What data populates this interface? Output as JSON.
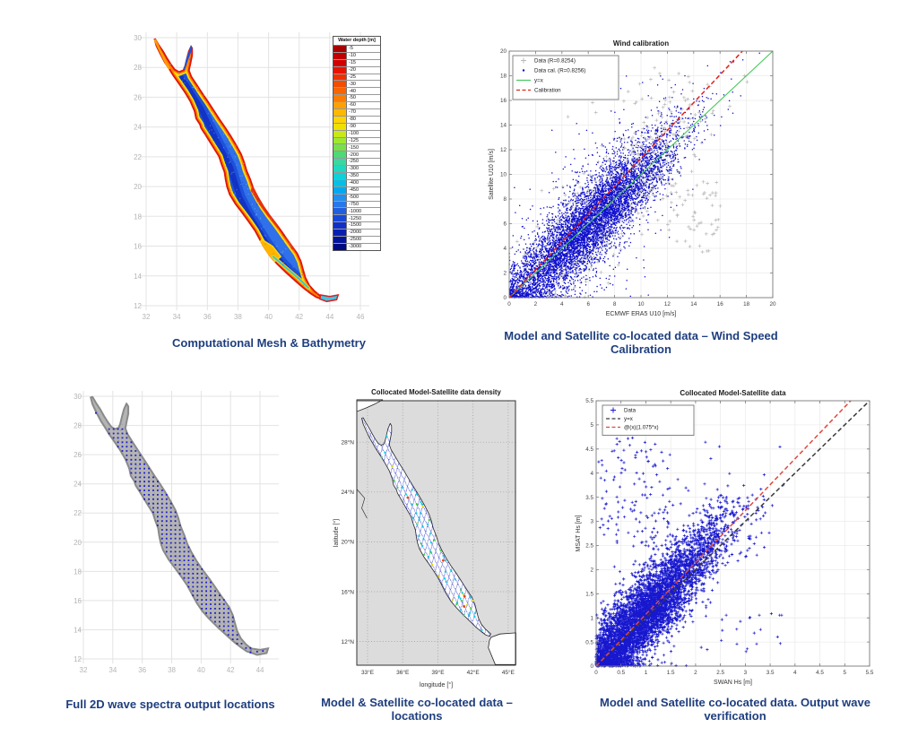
{
  "captions": {
    "bathymetry": "Computational Mesh & Bathymetry",
    "wind": "Model and Satellite co-located data – Wind Speed Calibration",
    "spectra": "Full 2D wave spectra output locations",
    "locations": "Model & Satellite co-located data – locations",
    "wave": "Model and Satellite co-located data. Output wave verification"
  },
  "chart_data": [
    {
      "id": "bathymetry",
      "type": "heatmap",
      "title": "",
      "region": "Red Sea computational mesh bathymetry",
      "x_ticks": [
        32,
        34,
        36,
        38,
        40,
        42,
        44,
        46
      ],
      "y_ticks": [
        12,
        14,
        16,
        18,
        20,
        22,
        24,
        26,
        28,
        30
      ],
      "colorbar": {
        "title": "Water depth [m]",
        "entries": [
          {
            "label": "-5",
            "color": "#AA0000"
          },
          {
            "label": "-10",
            "color": "#C00000"
          },
          {
            "label": "-15",
            "color": "#D40000"
          },
          {
            "label": "-20",
            "color": "#E81400"
          },
          {
            "label": "-25",
            "color": "#F03000"
          },
          {
            "label": "-30",
            "color": "#F44D00"
          },
          {
            "label": "-40",
            "color": "#F86400"
          },
          {
            "label": "-50",
            "color": "#FC7C00"
          },
          {
            "label": "-60",
            "color": "#FFA000"
          },
          {
            "label": "-70",
            "color": "#FFB800"
          },
          {
            "label": "-80",
            "color": "#FFD400"
          },
          {
            "label": "-90",
            "color": "#F0E000"
          },
          {
            "label": "-100",
            "color": "#C8E818"
          },
          {
            "label": "-125",
            "color": "#A0E830"
          },
          {
            "label": "-150",
            "color": "#78E048"
          },
          {
            "label": "-200",
            "color": "#50D878"
          },
          {
            "label": "-250",
            "color": "#38D8A0"
          },
          {
            "label": "-300",
            "color": "#20D8C0"
          },
          {
            "label": "-350",
            "color": "#10D0D8"
          },
          {
            "label": "-400",
            "color": "#00C0E8"
          },
          {
            "label": "-450",
            "color": "#00A8F0"
          },
          {
            "label": "-500",
            "color": "#2090F0"
          },
          {
            "label": "-750",
            "color": "#2878E8"
          },
          {
            "label": "-1000",
            "color": "#2060E0"
          },
          {
            "label": "-1250",
            "color": "#1848D8"
          },
          {
            "label": "-1500",
            "color": "#1030C8"
          },
          {
            "label": "-2000",
            "color": "#0820B0"
          },
          {
            "label": "-2500",
            "color": "#041498"
          },
          {
            "label": "-3000",
            "color": "#000A80"
          }
        ]
      }
    },
    {
      "id": "wind_calibration",
      "type": "scatter",
      "title": "Wind calibration",
      "xlabel": "ECMWF ERA5 U10 [m/s]",
      "ylabel": "Satellite U10 [m/s]",
      "xlim": [
        0,
        20
      ],
      "ylim": [
        0,
        20
      ],
      "x_ticks": [
        0,
        2,
        4,
        6,
        8,
        10,
        12,
        14,
        16,
        18,
        20
      ],
      "y_ticks": [
        0,
        2,
        4,
        6,
        8,
        10,
        12,
        14,
        16,
        18,
        20
      ],
      "legend_position": "top-left",
      "series": [
        {
          "name": "Data (R=0.8254)",
          "marker": "plus",
          "color": "#b9b9b9",
          "gen": {
            "n": 620,
            "seed": 11,
            "x_mean": 7.8,
            "x_sd": 3.3,
            "slope": 1.03,
            "noise_sd": 2.0,
            "wild_prob": 0.1,
            "wild_sd": 2.5,
            "extras": [
              {
                "n": 55,
                "seed": 31,
                "x": [
                  12,
                  16.2
                ],
                "y": [
                  3.5,
                  9.5
                ]
              },
              {
                "n": 22,
                "seed": 32,
                "x": [
                  4,
                  13
                ],
                "y": [
                  14.5,
                  19.3
                ]
              }
            ]
          }
        },
        {
          "name": "Data cal. (R=0.8256)",
          "marker": "dot",
          "color": "#1010cf",
          "gen": {
            "n": 7200,
            "seed": 7,
            "x_mean": 6.0,
            "x_sd": 3.3,
            "slope": 1.0,
            "noise_sd": 1.5,
            "wild_prob": 0.13,
            "wild_sd": 3.0
          }
        },
        {
          "name": "y=x",
          "marker": "line",
          "color": "#46c95c",
          "dash": null,
          "line": {
            "x1": 0,
            "y1": 0,
            "x2": 20,
            "y2": 20
          }
        },
        {
          "name": "Calibration",
          "marker": "line",
          "color": "#e32219",
          "dash": "5,3",
          "line": {
            "x1": 0,
            "y1": 0,
            "x2": 17.7,
            "y2": 20
          }
        }
      ]
    },
    {
      "id": "density_map",
      "type": "scatter-map",
      "title": "Collocated Model-Satellite data density",
      "xlabel": "longitude [°]",
      "ylabel": "latitude [°]",
      "x_ticks": [
        33,
        36,
        39,
        42,
        45
      ],
      "x_tick_labels": [
        "33°E",
        "36°E",
        "39°E",
        "42°E",
        "45°E"
      ],
      "y_ticks": [
        12,
        16,
        20,
        24,
        28
      ],
      "y_tick_labels": [
        "12°N",
        "16°N",
        "20°N",
        "24°N",
        "28°N"
      ],
      "xlim": [
        32.08,
        45.62
      ],
      "ylim": [
        10.1,
        31.32
      ]
    },
    {
      "id": "wave_verification",
      "type": "scatter",
      "title": "Collocated Model-Satellite data",
      "xlabel": "SWAN Hs [m]",
      "ylabel": "MSAT Hs [m]",
      "xlim": [
        0,
        5.5
      ],
      "ylim": [
        0,
        5.5
      ],
      "x_ticks": [
        0,
        0.5,
        1,
        1.5,
        2,
        2.5,
        3,
        3.5,
        4,
        4.5,
        5,
        5.5
      ],
      "y_ticks": [
        0,
        0.5,
        1,
        1.5,
        2,
        2.5,
        3,
        3.5,
        4,
        4.5,
        5,
        5.5
      ],
      "legend_position": "top-left",
      "series": [
        {
          "name": "Data",
          "marker": "plus",
          "color": "#1717cf",
          "gen": {
            "n": 5200,
            "seed": 21,
            "x_mean": 0.95,
            "x_sd": 0.8,
            "slope": 1.075,
            "noise_sd": 0.4,
            "wild_prob": 0.05,
            "wild_sd": 0.85,
            "extras": [
              {
                "n": 120,
                "seed": 5,
                "x": [
                  0.05,
                  1.5
                ],
                "y": [
                  2.55,
                  4.75
                ]
              },
              {
                "n": 22,
                "seed": 6,
                "x": [
                  2.2,
                  3.75
                ],
                "y": [
                  0.3,
                  1.1
                ]
              },
              {
                "n": 30,
                "seed": 8,
                "x": [
                  2.4,
                  3.6
                ],
                "y": [
                  2.2,
                  3.3
                ]
              }
            ]
          }
        },
        {
          "name": "y=x",
          "marker": "line",
          "color": "#3a3a3a",
          "dash": "5,3",
          "line": {
            "x1": 0,
            "y1": 0,
            "x2": 5.5,
            "y2": 5.5
          }
        },
        {
          "name": "@(x)(1.075*x)",
          "marker": "line",
          "color": "#e0483e",
          "dash": "5,3",
          "line": {
            "x1": 0,
            "y1": 0,
            "x2": 5.12,
            "y2": 5.5
          }
        }
      ]
    },
    {
      "id": "spectra_locations",
      "type": "map",
      "title": "",
      "x_ticks": [
        32,
        34,
        36,
        38,
        40,
        42,
        44
      ],
      "y_ticks": [
        12,
        14,
        16,
        18,
        20,
        22,
        24,
        26,
        28,
        30
      ],
      "marker": {
        "shape": "square",
        "color": "#1c1ccd",
        "grid_spacing_deg": 0.3
      }
    }
  ],
  "map_geometry": {
    "red_sea": [
      [
        32.5,
        29.92
      ],
      [
        32.62,
        29.45
      ],
      [
        32.88,
        28.9
      ],
      [
        33.18,
        28.32
      ],
      [
        33.45,
        27.9
      ],
      [
        33.72,
        27.45
      ],
      [
        34.1,
        26.9
      ],
      [
        34.5,
        26.3
      ],
      [
        34.85,
        25.7
      ],
      [
        35.12,
        25.05
      ],
      [
        35.22,
        24.55
      ],
      [
        35.48,
        24.15
      ],
      [
        35.55,
        23.9
      ],
      [
        35.9,
        23.35
      ],
      [
        36.35,
        22.6
      ],
      [
        36.72,
        22.0
      ],
      [
        36.88,
        21.5
      ],
      [
        37.08,
        20.95
      ],
      [
        37.15,
        20.45
      ],
      [
        37.25,
        19.95
      ],
      [
        37.42,
        19.45
      ],
      [
        37.8,
        18.8
      ],
      [
        38.25,
        18.2
      ],
      [
        38.68,
        17.6
      ],
      [
        39.08,
        17.0
      ],
      [
        39.4,
        16.4
      ],
      [
        39.7,
        15.85
      ],
      [
        40.1,
        15.25
      ],
      [
        40.55,
        14.75
      ],
      [
        41.1,
        14.2
      ],
      [
        41.7,
        13.65
      ],
      [
        42.25,
        13.15
      ],
      [
        42.7,
        12.8
      ],
      [
        43.1,
        12.52
      ],
      [
        43.42,
        12.42
      ],
      [
        43.52,
        12.62
      ],
      [
        43.05,
        13.0
      ],
      [
        42.7,
        13.4
      ],
      [
        42.45,
        13.9
      ],
      [
        42.3,
        14.45
      ],
      [
        42.15,
        15.0
      ],
      [
        41.9,
        15.55
      ],
      [
        41.55,
        16.05
      ],
      [
        41.2,
        16.55
      ],
      [
        40.9,
        17.0
      ],
      [
        40.55,
        17.5
      ],
      [
        40.1,
        18.1
      ],
      [
        39.7,
        18.7
      ],
      [
        39.35,
        19.3
      ],
      [
        39.05,
        19.9
      ],
      [
        38.85,
        20.5
      ],
      [
        38.6,
        21.1
      ],
      [
        38.45,
        21.65
      ],
      [
        38.25,
        22.2
      ],
      [
        37.9,
        22.85
      ],
      [
        37.55,
        23.45
      ],
      [
        37.2,
        24.0
      ],
      [
        36.8,
        24.6
      ],
      [
        36.45,
        25.15
      ],
      [
        36.1,
        25.7
      ],
      [
        35.7,
        26.3
      ],
      [
        35.35,
        26.85
      ],
      [
        35.0,
        27.4
      ],
      [
        34.85,
        27.8
      ],
      [
        34.95,
        28.3
      ],
      [
        35.05,
        28.8
      ],
      [
        35.05,
        29.3
      ],
      [
        34.93,
        29.5
      ],
      [
        34.75,
        29.1
      ],
      [
        34.62,
        28.6
      ],
      [
        34.5,
        28.1
      ],
      [
        34.4,
        27.85
      ],
      [
        34.15,
        27.75
      ],
      [
        33.9,
        27.9
      ],
      [
        33.65,
        28.25
      ],
      [
        33.4,
        28.65
      ],
      [
        33.15,
        29.1
      ],
      [
        32.85,
        29.55
      ],
      [
        32.62,
        29.95
      ]
    ],
    "trench": [
      [
        34.35,
        27.25
      ],
      [
        35.0,
        26.2
      ],
      [
        35.6,
        25.2
      ],
      [
        36.0,
        24.3
      ],
      [
        36.5,
        23.3
      ],
      [
        37.0,
        22.3
      ],
      [
        37.5,
        21.3
      ],
      [
        37.8,
        20.3
      ],
      [
        38.1,
        19.3
      ],
      [
        38.6,
        18.3
      ],
      [
        39.2,
        17.3
      ],
      [
        39.8,
        16.3
      ],
      [
        40.4,
        15.4
      ],
      [
        41.1,
        14.6
      ],
      [
        41.9,
        13.8
      ]
    ],
    "suez_center": [
      [
        32.6,
        29.82
      ],
      [
        32.95,
        29.05
      ],
      [
        33.3,
        28.3
      ],
      [
        33.48,
        27.95
      ]
    ],
    "aqaba_center": [
      [
        34.48,
        27.95
      ],
      [
        34.68,
        28.55
      ],
      [
        34.88,
        29.1
      ],
      [
        34.97,
        29.4
      ]
    ],
    "tail_center": [
      [
        40.3,
        15.3
      ],
      [
        41.2,
        14.5
      ],
      [
        42.0,
        13.8
      ],
      [
        42.6,
        13.2
      ]
    ],
    "aden_blob": [
      [
        43.4,
        12.72
      ],
      [
        44.0,
        12.62
      ],
      [
        44.55,
        12.72
      ],
      [
        44.45,
        12.4
      ],
      [
        43.8,
        12.28
      ],
      [
        43.35,
        12.45
      ]
    ],
    "shallow_patches": {
      "farasan": [
        [
          41.3,
          17.35
        ],
        [
          41.95,
          16.85
        ],
        [
          42.28,
          16.15
        ],
        [
          42.1,
          15.5
        ],
        [
          41.5,
          15.8
        ],
        [
          41.1,
          16.6
        ]
      ],
      "dahlak": [
        [
          39.55,
          16.45
        ],
        [
          40.25,
          16.0
        ],
        [
          40.8,
          15.3
        ],
        [
          40.3,
          14.9
        ],
        [
          39.7,
          15.4
        ],
        [
          39.3,
          15.95
        ]
      ],
      "east_band": [
        [
          39.05,
          20.25
        ],
        [
          39.6,
          19.55
        ],
        [
          40.15,
          18.8
        ],
        [
          40.7,
          18.1
        ],
        [
          41.15,
          17.45
        ],
        [
          40.6,
          17.2
        ],
        [
          39.95,
          18.0
        ],
        [
          39.35,
          18.85
        ],
        [
          38.82,
          19.75
        ]
      ]
    },
    "med_wedge": [
      [
        32.08,
        31.4
      ],
      [
        34.3,
        31.4
      ],
      [
        33.6,
        31.05
      ],
      [
        32.9,
        30.75
      ],
      [
        32.08,
        30.45
      ]
    ],
    "aden_wedge": [
      [
        43.55,
        12.35
      ],
      [
        44.3,
        12.6
      ],
      [
        45.65,
        12.7
      ],
      [
        45.65,
        10.15
      ],
      [
        43.9,
        10.15
      ],
      [
        43.3,
        11.5
      ],
      [
        43.4,
        12.1
      ]
    ],
    "nile": [
      [
        32.1,
        24.2
      ],
      [
        32.75,
        23.5
      ],
      [
        32.5,
        22.7
      ],
      [
        32.95,
        21.9
      ]
    ]
  }
}
